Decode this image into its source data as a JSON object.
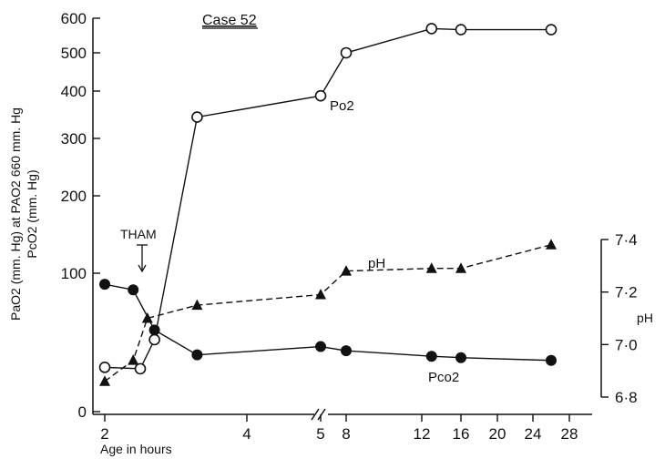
{
  "chart_data": {
    "type": "line",
    "title": "Case 52",
    "xlabel": "Age in hours",
    "x_ticks": [
      "2",
      "4",
      "5",
      "8",
      "12",
      "16",
      "20",
      "24",
      "28"
    ],
    "ylabel_left_lines": [
      "PaO2 (mm. Hg) at PAO2 660 mm. Hg",
      "PcO2 (mm. Hg)"
    ],
    "y_left_ticks": [
      "600",
      "500",
      "400",
      "300",
      "200",
      "100",
      "0"
    ],
    "ylabel_right": "pH",
    "y_right_ticks": [
      "7·4",
      "7·2",
      "7·0",
      "6·8"
    ],
    "annotation": "THAM",
    "series": [
      {
        "name": "Po2",
        "marker": "open-circle",
        "axis": "left",
        "points": [
          {
            "x": 2,
            "y": 32
          },
          {
            "x": 2.5,
            "y": 31
          },
          {
            "x": 2.7,
            "y": 52
          },
          {
            "x": 3.3,
            "y": 345
          },
          {
            "x": 5,
            "y": 390
          },
          {
            "x": 8,
            "y": 500
          },
          {
            "x": 13,
            "y": 570
          },
          {
            "x": 16,
            "y": 567
          },
          {
            "x": 26,
            "y": 567
          }
        ]
      },
      {
        "name": "pH",
        "marker": "filled-triangle",
        "axis": "right",
        "points": [
          {
            "x": 2,
            "y": 6.86
          },
          {
            "x": 2.4,
            "y": 6.94
          },
          {
            "x": 2.6,
            "y": 7.1
          },
          {
            "x": 3.3,
            "y": 7.15
          },
          {
            "x": 5,
            "y": 7.19
          },
          {
            "x": 8,
            "y": 7.28
          },
          {
            "x": 13,
            "y": 7.29
          },
          {
            "x": 16,
            "y": 7.29
          },
          {
            "x": 26,
            "y": 7.38
          }
        ]
      },
      {
        "name": "Pco2",
        "marker": "filled-circle",
        "axis": "left",
        "points": [
          {
            "x": 2,
            "y": 92
          },
          {
            "x": 2.4,
            "y": 88
          },
          {
            "x": 2.7,
            "y": 59
          },
          {
            "x": 3.3,
            "y": 41
          },
          {
            "x": 5,
            "y": 47
          },
          {
            "x": 8,
            "y": 44
          },
          {
            "x": 13,
            "y": 40
          },
          {
            "x": 16,
            "y": 39
          },
          {
            "x": 26,
            "y": 37
          }
        ]
      }
    ]
  }
}
